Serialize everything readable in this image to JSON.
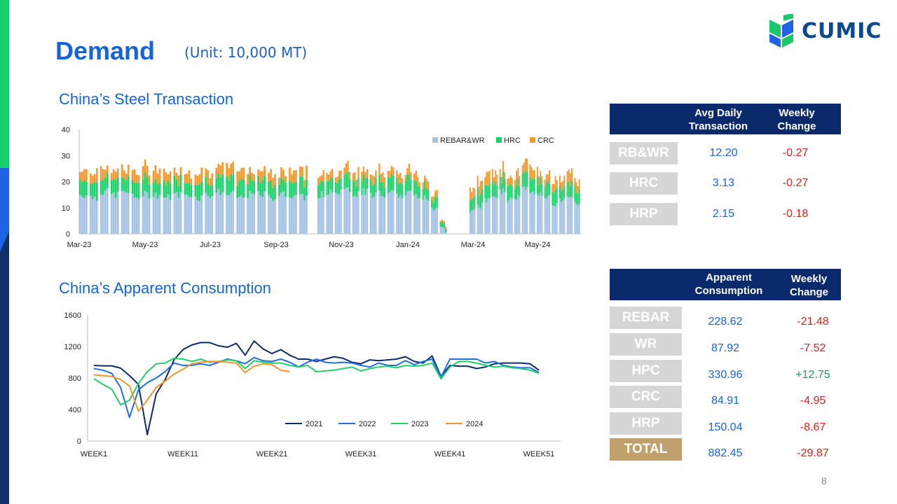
{
  "page": {
    "title": "Demand",
    "unit": "(Unit: 10,000 MT)",
    "logo_text": "CUMIC",
    "page_number": "8",
    "colors": {
      "accent": "#1565d8",
      "navy": "#0b2a6b",
      "gold": "#c0a06c",
      "label_gray": "#d6d6d6"
    }
  },
  "sections": {
    "transaction_title": "China’s Steel Transaction",
    "consumption_title": "China’s Apparent Consumption"
  },
  "table1": {
    "head": [
      "",
      "Avg Daily Transaction",
      "Weekly Change"
    ],
    "rows": [
      {
        "label": "RB&WR",
        "value": "12.20",
        "change": "-0.27"
      },
      {
        "label": "HRC",
        "value": "3.13",
        "change": "-0.27"
      },
      {
        "label": "HRP",
        "value": "2.15",
        "change": "-0.18"
      }
    ]
  },
  "table2": {
    "head": [
      "",
      "Apparent Consumption",
      "Weekly Change"
    ],
    "rows": [
      {
        "label": "REBAR",
        "value": "228.62",
        "change": "-21.48"
      },
      {
        "label": "WR",
        "value": "87.92",
        "change": "-7.52"
      },
      {
        "label": "HPC",
        "value": "330.96",
        "change": "+12.75"
      },
      {
        "label": "CRC",
        "value": "84.91",
        "change": "-4.95"
      },
      {
        "label": "HRP",
        "value": "150.04",
        "change": "-8.67"
      },
      {
        "label": "TOTAL",
        "value": "882.45",
        "change": "-29.87"
      }
    ]
  },
  "chart_data": [
    {
      "type": "bar",
      "stacked": true,
      "y_ticks": [
        "0",
        "10",
        "20",
        "30",
        "40"
      ],
      "ylim": [
        0,
        40
      ],
      "x_tick_labels": [
        "Mar-23",
        "May-23",
        "Jul-23",
        "Sep-23",
        "Nov-23",
        "Jan-24",
        "Mar-24",
        "May-24"
      ],
      "legend": [
        "REBAR&WR",
        "HRC",
        "CRC"
      ],
      "colors": [
        "#a4c2e4",
        "#19d36a",
        "#f39a2c"
      ],
      "legend_position": "top-right",
      "segments": [
        {
          "start": "Mar-23",
          "end": "Sep-23",
          "rebar": [
            15,
            14,
            16,
            15,
            16,
            14,
            15,
            15,
            14,
            15,
            15,
            14,
            15,
            16,
            15,
            14,
            15,
            15,
            14,
            15,
            15,
            14
          ],
          "hrc": 5.5,
          "crc": 4
        },
        {
          "start": "Oct-23",
          "end": "Jan-24",
          "rebar": [
            15,
            16,
            16,
            17,
            15,
            16,
            15,
            15,
            16,
            15,
            15,
            15,
            14,
            10,
            4
          ],
          "hrc": 5,
          "crc": 3
        },
        {
          "start": "Mar-24",
          "end": "Jun-24",
          "rebar": [
            8,
            11,
            13,
            14,
            16,
            13,
            14,
            17,
            16,
            15,
            14,
            12,
            13,
            14,
            12
          ],
          "hrc": 5,
          "crc": 4
        }
      ]
    },
    {
      "type": "line",
      "x_tick_labels": [
        "WEEK1",
        "WEEK11",
        "WEEK21",
        "WEEK31",
        "WEEK41",
        "WEEK51"
      ],
      "y_ticks": [
        "0",
        "400",
        "800",
        "1200",
        "1600"
      ],
      "ylim": [
        0,
        1600
      ],
      "legend_position": "bottom-center",
      "series": [
        {
          "name": "2021",
          "color": "#0d2c6c",
          "values": [
            960,
            955,
            955,
            925,
            830,
            720,
            80,
            600,
            780,
            1030,
            1160,
            1220,
            1250,
            1250,
            1210,
            1190,
            1240,
            1090,
            1270,
            1170,
            1110,
            1160,
            1090,
            1040,
            1040,
            1010,
            1040,
            1070,
            1050,
            1000,
            980,
            1030,
            1020,
            1030,
            1040,
            1070,
            1010,
            990,
            1080,
            820,
            960,
            950,
            950,
            920,
            940,
            980,
            990,
            990,
            990,
            980,
            900
          ]
        },
        {
          "name": "2022",
          "color": "#1f6fe0",
          "values": [
            920,
            900,
            860,
            680,
            300,
            650,
            740,
            800,
            880,
            990,
            960,
            960,
            980,
            960,
            1000,
            1040,
            1020,
            980,
            1060,
            1020,
            1010,
            1040,
            1000,
            940,
            1000,
            1040,
            1000,
            990,
            1000,
            990,
            960,
            940,
            990,
            960,
            960,
            1020,
            970,
            1010,
            1040,
            810,
            1040,
            1040,
            1040,
            1040,
            990,
            1010,
            960,
            940,
            930,
            930,
            870
          ]
        },
        {
          "name": "2023",
          "color": "#22cf6a",
          "values": [
            790,
            720,
            660,
            460,
            520,
            730,
            880,
            980,
            990,
            1050,
            1040,
            1010,
            1040,
            1000,
            1010,
            1030,
            1020,
            920,
            1020,
            1000,
            990,
            990,
            960,
            940,
            960,
            880,
            890,
            900,
            920,
            940,
            890,
            920,
            940,
            950,
            930,
            960,
            950,
            960,
            990,
            790,
            940,
            1010,
            1010,
            990,
            960,
            940,
            950,
            930,
            920,
            900,
            860
          ]
        },
        {
          "name": "2024",
          "color": "#f1962c",
          "values": [
            840,
            830,
            820,
            780,
            700,
            380,
            520,
            680,
            760,
            850,
            910,
            980,
            1000,
            1010,
            1010,
            1000,
            990,
            870,
            950,
            980,
            970,
            900,
            880
          ]
        }
      ]
    }
  ]
}
